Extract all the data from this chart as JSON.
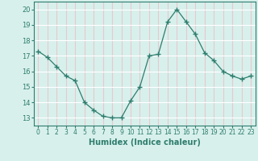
{
  "x": [
    0,
    1,
    2,
    3,
    4,
    5,
    6,
    7,
    8,
    9,
    10,
    11,
    12,
    13,
    14,
    15,
    16,
    17,
    18,
    19,
    20,
    21,
    22,
    23
  ],
  "y": [
    17.3,
    16.9,
    16.3,
    15.7,
    15.4,
    14.0,
    13.5,
    13.1,
    13.0,
    13.0,
    14.1,
    15.0,
    17.0,
    17.1,
    19.2,
    20.0,
    19.2,
    18.4,
    17.2,
    16.7,
    16.0,
    15.7,
    15.5,
    15.7
  ],
  "line_color": "#2e7d6e",
  "marker": "+",
  "marker_size": 4,
  "bg_color": "#d8f0ec",
  "hgrid_color": "#ffffff",
  "vgrid_color": "#e8c8cc",
  "xlabel": "Humidex (Indice chaleur)",
  "xlim": [
    -0.5,
    23.5
  ],
  "ylim": [
    12.5,
    20.5
  ],
  "yticks": [
    13,
    14,
    15,
    16,
    17,
    18,
    19,
    20
  ],
  "xticks": [
    0,
    1,
    2,
    3,
    4,
    5,
    6,
    7,
    8,
    9,
    10,
    11,
    12,
    13,
    14,
    15,
    16,
    17,
    18,
    19,
    20,
    21,
    22,
    23
  ],
  "tick_color": "#2e7d6e",
  "label_color": "#2e7d6e",
  "xlabel_fontsize": 7,
  "ytick_fontsize": 6,
  "xtick_fontsize": 5.5,
  "linewidth": 0.9,
  "marker_color": "#2e7d6e"
}
